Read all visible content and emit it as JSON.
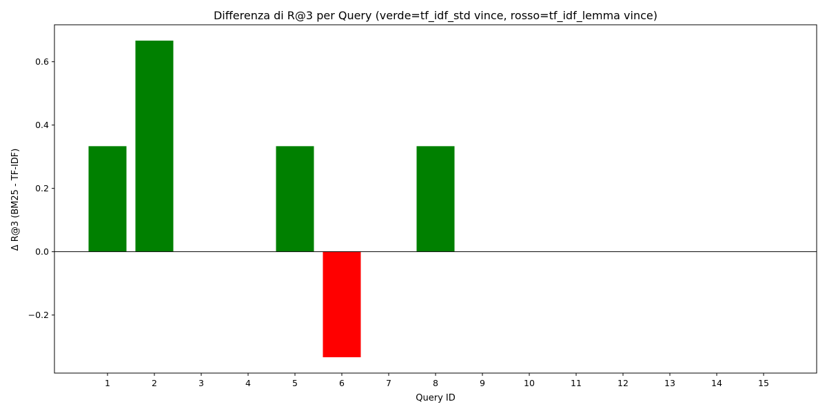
{
  "chart_data": {
    "type": "bar",
    "title": "Differenza di R@3 per Query (verde=tf_idf_std vince, rosso=tf_idf_lemma vince)",
    "xlabel": "Query ID",
    "ylabel": "Δ R@3 (BM25 - TF-IDF)",
    "categories": [
      "1",
      "2",
      "3",
      "4",
      "5",
      "6",
      "7",
      "8",
      "9",
      "10",
      "11",
      "12",
      "13",
      "14",
      "15"
    ],
    "values": [
      0.3333,
      0.6667,
      0,
      0,
      0.3333,
      -0.3333,
      0,
      0.3333,
      0,
      0,
      0,
      0,
      0,
      0,
      0
    ],
    "y_ticks": [
      -0.2,
      0.0,
      0.2,
      0.4,
      0.6
    ],
    "y_tick_labels": [
      "−0.2",
      "0.0",
      "0.2",
      "0.4",
      "0.6"
    ],
    "ylim": [
      -0.3833,
      0.7167
    ],
    "grid": false,
    "zero_line": true,
    "colors": {
      "positive": "#008000",
      "negative": "#ff0000",
      "zero_line": "#000000"
    }
  }
}
